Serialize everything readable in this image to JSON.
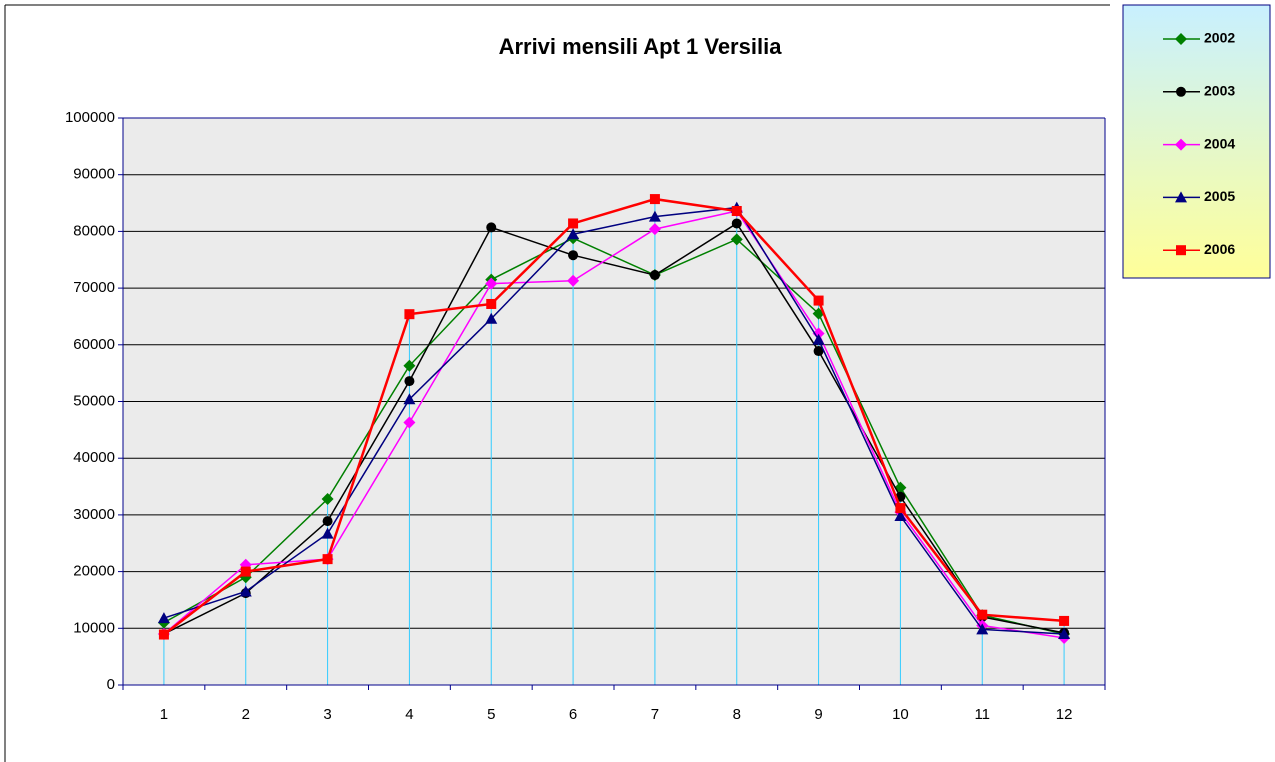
{
  "chart_data": {
    "type": "line",
    "title": "Arrivi mensili Apt 1 Versilia",
    "categories": [
      "1",
      "2",
      "3",
      "4",
      "5",
      "6",
      "7",
      "8",
      "9",
      "10",
      "11",
      "12"
    ],
    "series": [
      {
        "name": "2002",
        "color": "#008000",
        "marker": "diamond",
        "values": [
          11000,
          19000,
          32800,
          56300,
          71500,
          78800,
          72300,
          78600,
          65500,
          34800,
          12300,
          9000
        ]
      },
      {
        "name": "2003",
        "color": "#000000",
        "marker": "circle",
        "values": [
          9000,
          16200,
          28900,
          53600,
          80700,
          75800,
          72300,
          81400,
          58900,
          33200,
          12000,
          9200
        ]
      },
      {
        "name": "2004",
        "color": "#ff00ff",
        "marker": "diamond",
        "values": [
          9000,
          21200,
          22200,
          46300,
          70800,
          71300,
          80400,
          83600,
          62000,
          30500,
          10500,
          8300
        ]
      },
      {
        "name": "2005",
        "color": "#000080",
        "marker": "triangle",
        "values": [
          11800,
          16500,
          26700,
          50400,
          64600,
          79500,
          82600,
          84200,
          60900,
          29800,
          9800,
          9000
        ]
      },
      {
        "name": "2006",
        "color": "#ff0000",
        "marker": "square",
        "values": [
          8900,
          20000,
          22200,
          65400,
          67200,
          81400,
          85700,
          83600,
          67800,
          31200,
          12400,
          11300
        ]
      }
    ],
    "ylim": [
      0,
      100000
    ],
    "yticks": [
      0,
      10000,
      20000,
      30000,
      40000,
      50000,
      60000,
      70000,
      80000,
      90000,
      100000
    ],
    "grid": true,
    "drop_lines": true,
    "legend": "right"
  }
}
